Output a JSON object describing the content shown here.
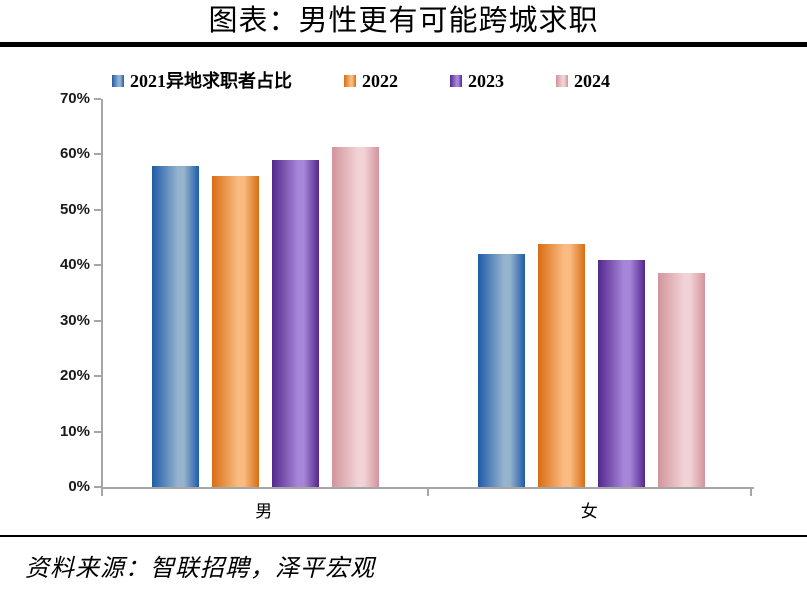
{
  "title": "图表：男性更有可能跨城求职",
  "footer": {
    "source_text": "资料来源：智联招聘，泽平宏观"
  },
  "chart_data": {
    "type": "bar",
    "title": "图表：男性更有可能跨城求职",
    "categories": [
      "男",
      "女"
    ],
    "series": [
      {
        "name": "2021异地求职者占比",
        "values": [
          58.0,
          42.0
        ],
        "color_dark": "#1E5CA8",
        "color_light": "#96B3CE"
      },
      {
        "name": "2022",
        "values": [
          56.2,
          43.8
        ],
        "color_dark": "#D86D12",
        "color_light": "#F9BB82"
      },
      {
        "name": "2023",
        "values": [
          59.0,
          41.0
        ],
        "color_dark": "#55278C",
        "color_light": "#A686D9"
      },
      {
        "name": "2024",
        "values": [
          61.4,
          38.6
        ],
        "color_dark": "#D2949C",
        "color_light": "#F1D2D6"
      }
    ],
    "xlabel": "",
    "ylabel": "",
    "ylim": [
      0,
      70
    ],
    "ytick_labels": [
      "0%",
      "10%",
      "20%",
      "30%",
      "40%",
      "50%",
      "60%",
      "70%"
    ],
    "grid": false,
    "legend_position": "top",
    "axis_color": "#A6A6A6"
  }
}
